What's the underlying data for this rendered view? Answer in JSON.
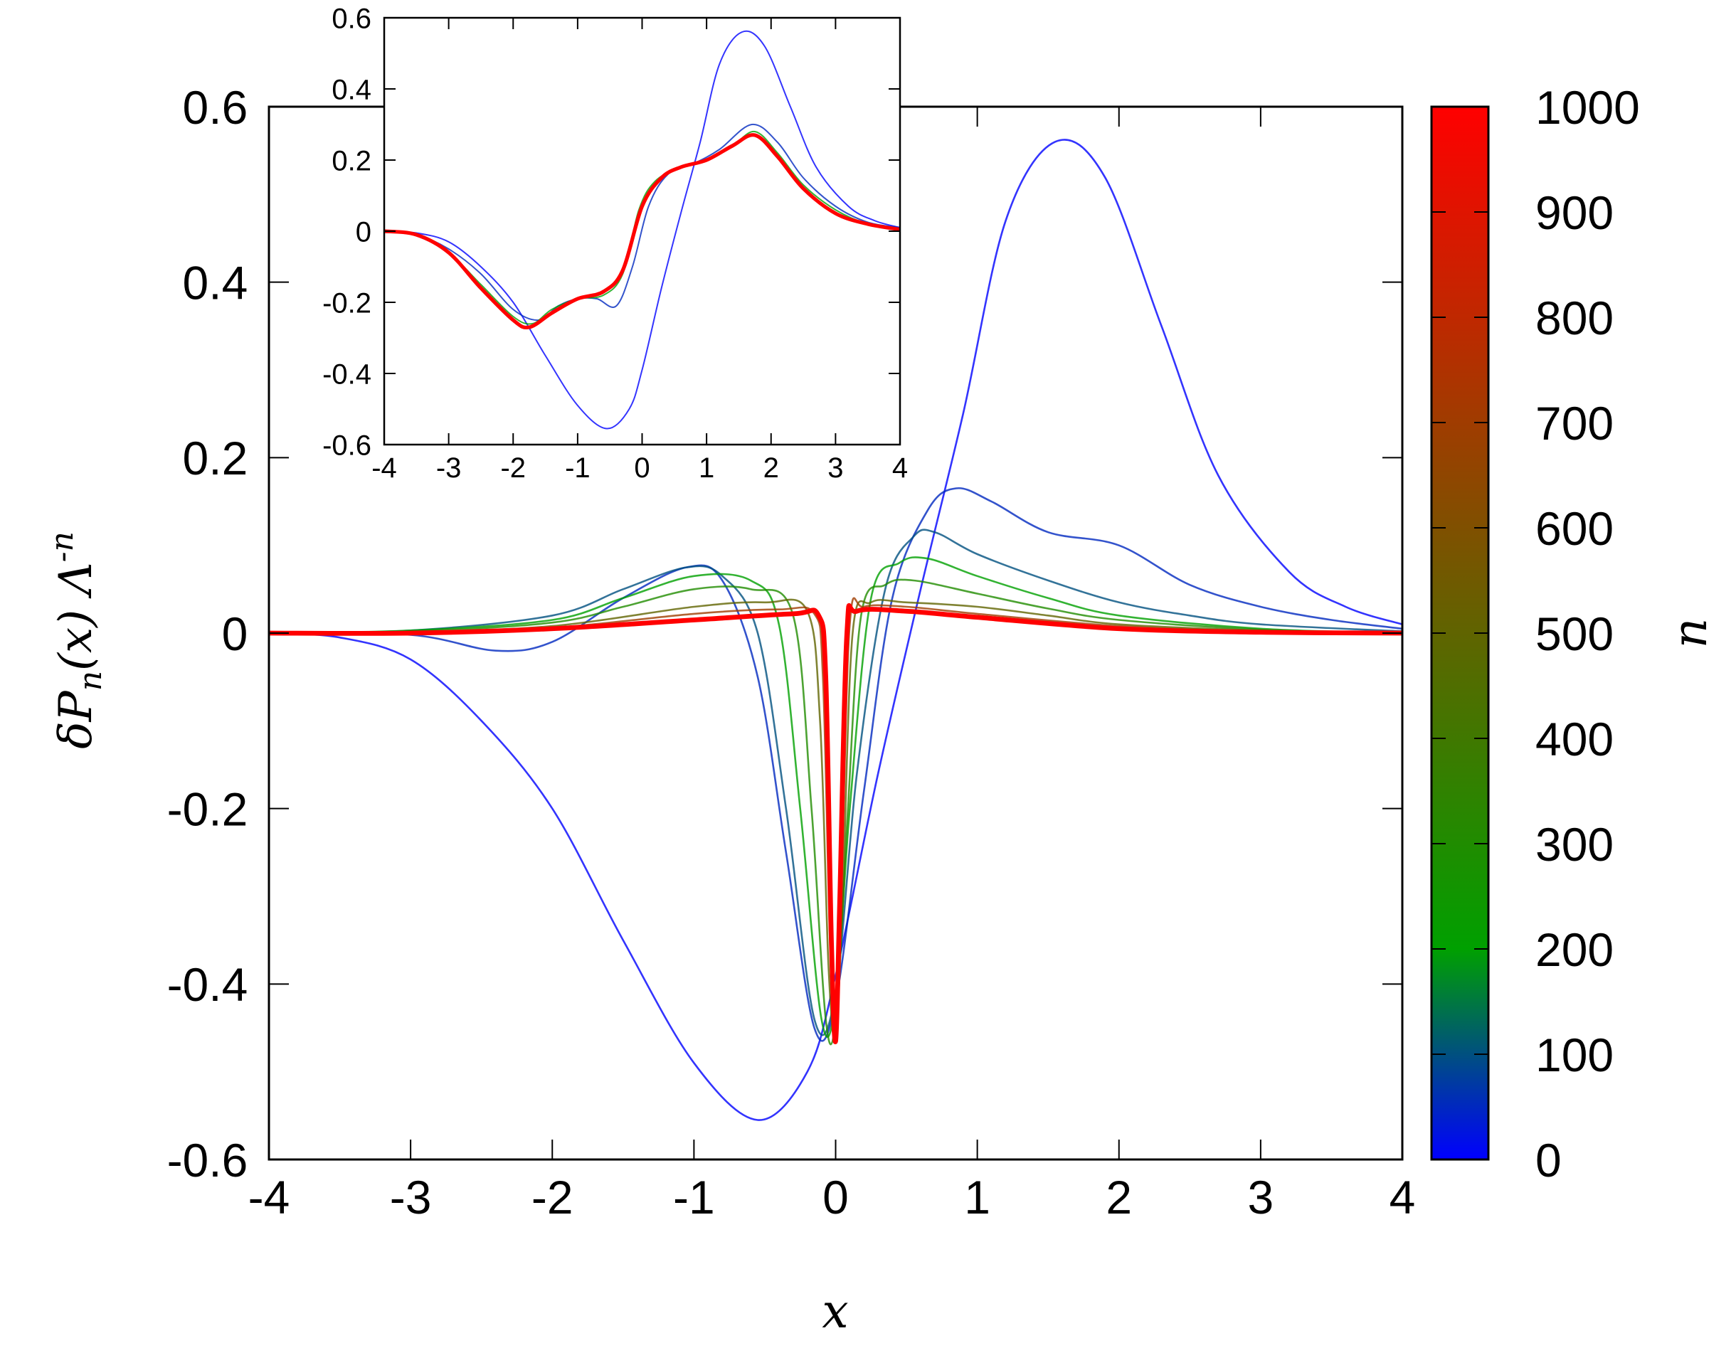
{
  "chart_data": [
    {
      "id": "main",
      "type": "line",
      "xlabel": "x",
      "ylabel": "δP_n(x) Λ^-n",
      "xlim": [
        -4,
        4
      ],
      "ylim": [
        -0.6,
        0.6
      ],
      "xticks": [
        -4,
        -3,
        -2,
        -1,
        0,
        1,
        2,
        3,
        4
      ],
      "yticks": [
        -0.6,
        -0.4,
        -0.2,
        0,
        0.2,
        0.4,
        0.6
      ],
      "xtick_labels": [
        "-4",
        "-3",
        "-2",
        "-1",
        "0",
        "1",
        "2",
        "3",
        "4"
      ],
      "ytick_labels": [
        "-0.6",
        "-0.4",
        "-0.2",
        "0",
        "0.2",
        "0.4",
        "0.6"
      ],
      "grid": false,
      "colorbar": {
        "label": "n",
        "range": [
          0,
          1000
        ],
        "ticks": [
          0,
          100,
          200,
          300,
          400,
          500,
          600,
          700,
          800,
          900,
          1000
        ],
        "tick_labels": [
          "0",
          "100",
          "200",
          "300",
          "400",
          "500",
          "600",
          "700",
          "800",
          "900",
          "1000"
        ],
        "colors": [
          {
            "at": 0,
            "color": "#0000ff"
          },
          {
            "at": 0.2,
            "color": "#00a000"
          },
          {
            "at": 1,
            "color": "#ff0000"
          }
        ]
      },
      "series": [
        {
          "n": 1,
          "points": [
            [
              -4,
              0
            ],
            [
              -3.5,
              -0.005
            ],
            [
              -3,
              -0.03
            ],
            [
              -2.5,
              -0.1
            ],
            [
              -2,
              -0.2
            ],
            [
              -1.5,
              -0.35
            ],
            [
              -1,
              -0.49
            ],
            [
              -0.55,
              -0.555
            ],
            [
              -0.2,
              -0.5
            ],
            [
              0,
              -0.39
            ],
            [
              0.3,
              -0.16
            ],
            [
              0.6,
              0.05
            ],
            [
              0.9,
              0.25
            ],
            [
              1.2,
              0.47
            ],
            [
              1.55,
              0.56
            ],
            [
              1.9,
              0.52
            ],
            [
              2.3,
              0.35
            ],
            [
              2.7,
              0.18
            ],
            [
              3.2,
              0.07
            ],
            [
              3.6,
              0.03
            ],
            [
              4,
              0.01
            ]
          ]
        },
        {
          "n": 50,
          "points": [
            [
              -4,
              0
            ],
            [
              -3,
              -0.002
            ],
            [
              -2.4,
              -0.02
            ],
            [
              -2,
              -0.01
            ],
            [
              -1.5,
              0.04
            ],
            [
              -1.05,
              0.075
            ],
            [
              -0.8,
              0.06
            ],
            [
              -0.55,
              -0.05
            ],
            [
              -0.35,
              -0.25
            ],
            [
              -0.15,
              -0.45
            ],
            [
              0,
              -0.42
            ],
            [
              0.2,
              -0.18
            ],
            [
              0.4,
              0.04
            ],
            [
              0.65,
              0.14
            ],
            [
              0.85,
              0.165
            ],
            [
              1.1,
              0.15
            ],
            [
              1.5,
              0.115
            ],
            [
              2,
              0.1
            ],
            [
              2.5,
              0.055
            ],
            [
              3,
              0.03
            ],
            [
              3.5,
              0.015
            ],
            [
              4,
              0.005
            ]
          ]
        },
        {
          "n": 100,
          "points": [
            [
              -4,
              0
            ],
            [
              -3,
              0.003
            ],
            [
              -2,
              0.02
            ],
            [
              -1.5,
              0.05
            ],
            [
              -1.05,
              0.075
            ],
            [
              -0.8,
              0.065
            ],
            [
              -0.55,
              0
            ],
            [
              -0.35,
              -0.2
            ],
            [
              -0.15,
              -0.44
            ],
            [
              0,
              -0.41
            ],
            [
              0.15,
              -0.16
            ],
            [
              0.35,
              0.05
            ],
            [
              0.55,
              0.11
            ],
            [
              0.7,
              0.115
            ],
            [
              1,
              0.09
            ],
            [
              1.5,
              0.06
            ],
            [
              2,
              0.035
            ],
            [
              2.5,
              0.02
            ],
            [
              3,
              0.01
            ],
            [
              4,
              0.002
            ]
          ]
        },
        {
          "n": 200,
          "points": [
            [
              -4,
              0
            ],
            [
              -3,
              0.003
            ],
            [
              -2,
              0.015
            ],
            [
              -1.5,
              0.04
            ],
            [
              -1,
              0.065
            ],
            [
              -0.6,
              0.06
            ],
            [
              -0.4,
              0.01
            ],
            [
              -0.25,
              -0.2
            ],
            [
              -0.1,
              -0.44
            ],
            [
              0,
              -0.42
            ],
            [
              0.1,
              -0.2
            ],
            [
              0.25,
              0.04
            ],
            [
              0.45,
              0.08
            ],
            [
              0.65,
              0.085
            ],
            [
              1,
              0.065
            ],
            [
              1.5,
              0.04
            ],
            [
              2,
              0.02
            ],
            [
              3,
              0.005
            ],
            [
              4,
              0
            ]
          ]
        },
        {
          "n": 300,
          "points": [
            [
              -4,
              0
            ],
            [
              -3,
              0.002
            ],
            [
              -2,
              0.012
            ],
            [
              -1.5,
              0.03
            ],
            [
              -1,
              0.05
            ],
            [
              -0.6,
              0.05
            ],
            [
              -0.3,
              0.02
            ],
            [
              -0.17,
              -0.2
            ],
            [
              -0.07,
              -0.44
            ],
            [
              0,
              -0.44
            ],
            [
              0.08,
              -0.22
            ],
            [
              0.18,
              0.02
            ],
            [
              0.35,
              0.055
            ],
            [
              0.55,
              0.06
            ],
            [
              1,
              0.045
            ],
            [
              1.5,
              0.028
            ],
            [
              2,
              0.015
            ],
            [
              3,
              0.004
            ],
            [
              4,
              0
            ]
          ]
        },
        {
          "n": 500,
          "points": [
            [
              -4,
              0
            ],
            [
              -3,
              0.001
            ],
            [
              -2,
              0.008
            ],
            [
              -1,
              0.03
            ],
            [
              -0.5,
              0.035
            ],
            [
              -0.2,
              0.025
            ],
            [
              -0.11,
              -0.1
            ],
            [
              -0.05,
              -0.38
            ],
            [
              0,
              -0.46
            ],
            [
              0.05,
              -0.3
            ],
            [
              0.12,
              0
            ],
            [
              0.25,
              0.035
            ],
            [
              0.5,
              0.035
            ],
            [
              1,
              0.03
            ],
            [
              1.5,
              0.02
            ],
            [
              2,
              0.01
            ],
            [
              3,
              0.003
            ],
            [
              4,
              0
            ]
          ]
        },
        {
          "n": 700,
          "points": [
            [
              -4,
              0
            ],
            [
              -3,
              0.001
            ],
            [
              -2,
              0.006
            ],
            [
              -1,
              0.022
            ],
            [
              -0.4,
              0.027
            ],
            [
              -0.15,
              0.022
            ],
            [
              -0.09,
              -0.05
            ],
            [
              -0.04,
              -0.35
            ],
            [
              0,
              -0.46
            ],
            [
              0.04,
              -0.3
            ],
            [
              0.1,
              0.01
            ],
            [
              0.2,
              0.03
            ],
            [
              0.5,
              0.03
            ],
            [
              1,
              0.022
            ],
            [
              2,
              0.008
            ],
            [
              3,
              0.002
            ],
            [
              4,
              0
            ]
          ]
        },
        {
          "n": 1000,
          "points": [
            [
              -4,
              0
            ],
            [
              -3,
              0
            ],
            [
              -2,
              0.005
            ],
            [
              -1,
              0.015
            ],
            [
              -0.3,
              0.022
            ],
            [
              -0.12,
              0.02
            ],
            [
              -0.07,
              -0.05
            ],
            [
              -0.03,
              -0.35
            ],
            [
              0,
              -0.465
            ],
            [
              0.03,
              -0.3
            ],
            [
              0.08,
              0
            ],
            [
              0.15,
              0.025
            ],
            [
              0.5,
              0.025
            ],
            [
              1,
              0.018
            ],
            [
              2,
              0.005
            ],
            [
              3,
              0.001
            ],
            [
              4,
              0
            ]
          ]
        }
      ]
    },
    {
      "id": "inset",
      "type": "line",
      "xlim": [
        -4,
        4
      ],
      "ylim": [
        -0.6,
        0.6
      ],
      "xticks": [
        -4,
        -3,
        -2,
        -1,
        0,
        1,
        2,
        3,
        4
      ],
      "yticks": [
        -0.6,
        -0.4,
        -0.2,
        0,
        0.2,
        0.4,
        0.6
      ],
      "xtick_labels": [
        "-4",
        "-3",
        "-2",
        "-1",
        "0",
        "1",
        "2",
        "3",
        "4"
      ],
      "ytick_labels": [
        "-0.6",
        "-0.4",
        "-0.2",
        "0",
        "0.2",
        "0.4",
        "0.6"
      ],
      "grid": false,
      "series": [
        {
          "n": 1,
          "points": [
            [
              -4,
              0
            ],
            [
              -3.5,
              -0.005
            ],
            [
              -3,
              -0.03
            ],
            [
              -2.5,
              -0.1
            ],
            [
              -2,
              -0.2
            ],
            [
              -1.5,
              -0.35
            ],
            [
              -1,
              -0.49
            ],
            [
              -0.55,
              -0.555
            ],
            [
              -0.2,
              -0.5
            ],
            [
              0,
              -0.39
            ],
            [
              0.3,
              -0.16
            ],
            [
              0.6,
              0.05
            ],
            [
              0.9,
              0.25
            ],
            [
              1.2,
              0.47
            ],
            [
              1.55,
              0.56
            ],
            [
              1.9,
              0.52
            ],
            [
              2.3,
              0.35
            ],
            [
              2.7,
              0.18
            ],
            [
              3.2,
              0.07
            ],
            [
              3.6,
              0.03
            ],
            [
              4,
              0.01
            ]
          ]
        },
        {
          "n": 50,
          "points": [
            [
              -4,
              0
            ],
            [
              -3.5,
              -0.01
            ],
            [
              -3,
              -0.05
            ],
            [
              -2.5,
              -0.12
            ],
            [
              -2,
              -0.22
            ],
            [
              -1.6,
              -0.25
            ],
            [
              -1.3,
              -0.21
            ],
            [
              -1,
              -0.19
            ],
            [
              -0.7,
              -0.19
            ],
            [
              -0.4,
              -0.21
            ],
            [
              -0.15,
              -0.1
            ],
            [
              0.1,
              0.07
            ],
            [
              0.4,
              0.16
            ],
            [
              0.8,
              0.19
            ],
            [
              1.2,
              0.23
            ],
            [
              1.7,
              0.3
            ],
            [
              2.1,
              0.25
            ],
            [
              2.5,
              0.15
            ],
            [
              3,
              0.07
            ],
            [
              3.5,
              0.025
            ],
            [
              4,
              0.01
            ]
          ]
        },
        {
          "n": 200,
          "points": [
            [
              -4,
              0
            ],
            [
              -3.5,
              -0.01
            ],
            [
              -3,
              -0.06
            ],
            [
              -2.5,
              -0.15
            ],
            [
              -2,
              -0.24
            ],
            [
              -1.7,
              -0.26
            ],
            [
              -1.4,
              -0.22
            ],
            [
              -1,
              -0.19
            ],
            [
              -0.6,
              -0.18
            ],
            [
              -0.3,
              -0.12
            ],
            [
              -0.05,
              0.06
            ],
            [
              0.2,
              0.14
            ],
            [
              0.6,
              0.18
            ],
            [
              1,
              0.2
            ],
            [
              1.4,
              0.24
            ],
            [
              1.75,
              0.28
            ],
            [
              2.1,
              0.22
            ],
            [
              2.5,
              0.13
            ],
            [
              3,
              0.06
            ],
            [
              3.5,
              0.02
            ],
            [
              4,
              0.005
            ]
          ]
        },
        {
          "n": 1000,
          "points": [
            [
              -4,
              0
            ],
            [
              -3.5,
              -0.01
            ],
            [
              -3,
              -0.06
            ],
            [
              -2.5,
              -0.16
            ],
            [
              -2,
              -0.25
            ],
            [
              -1.75,
              -0.27
            ],
            [
              -1.4,
              -0.23
            ],
            [
              -1,
              -0.19
            ],
            [
              -0.6,
              -0.17
            ],
            [
              -0.3,
              -0.11
            ],
            [
              0,
              0.07
            ],
            [
              0.3,
              0.15
            ],
            [
              0.6,
              0.18
            ],
            [
              1,
              0.2
            ],
            [
              1.4,
              0.24
            ],
            [
              1.75,
              0.27
            ],
            [
              2.1,
              0.21
            ],
            [
              2.5,
              0.12
            ],
            [
              3,
              0.05
            ],
            [
              3.5,
              0.02
            ],
            [
              4,
              0.005
            ]
          ]
        }
      ]
    }
  ]
}
